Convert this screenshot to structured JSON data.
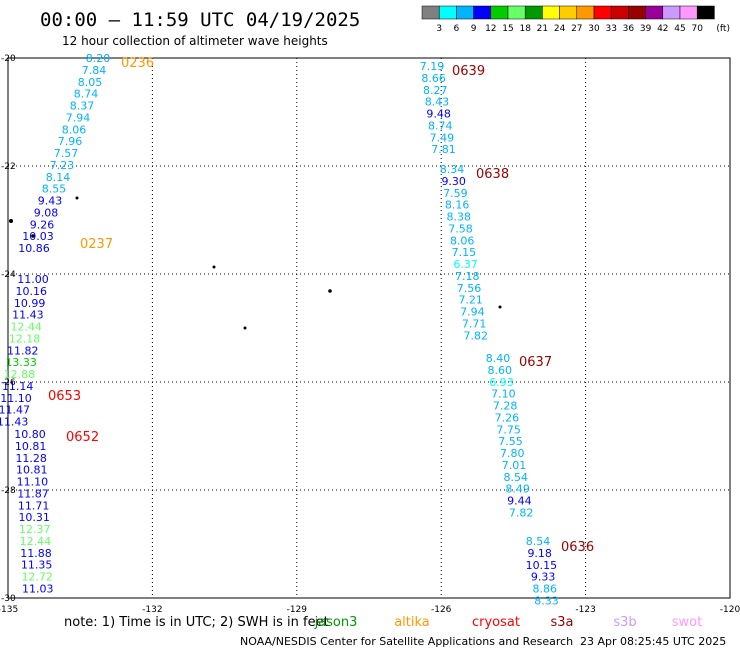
{
  "header": {
    "title": "00:00 – 11:59 UTC 04/19/2025",
    "subtitle": "12 hour collection of altimeter wave heights"
  },
  "legend": {
    "unit": "(ft)",
    "colors": [
      "#808080",
      "#00ffff",
      "#00b4ff",
      "#0000ff",
      "#00cc00",
      "#66ff66",
      "#009900",
      "#ffff00",
      "#ffcc00",
      "#ff9900",
      "#ff0000",
      "#cc0000",
      "#990000",
      "#990099",
      "#cc99ff",
      "#ff99ff",
      "#000000"
    ],
    "labels": [
      "3",
      "6",
      "9",
      "12",
      "15",
      "18",
      "21",
      "24",
      "27",
      "30",
      "33",
      "36",
      "39",
      "42",
      "45",
      "70"
    ]
  },
  "chart_data": {
    "type": "scatter",
    "xlim": [
      -135,
      -120
    ],
    "ylim": [
      -30,
      -20
    ],
    "x_ticks": [
      "-135",
      "-132",
      "-129",
      "-126",
      "-123",
      "-120"
    ],
    "y_ticks": [
      "-20",
      "-22",
      "-24",
      "-26",
      "-28",
      "-30"
    ],
    "grid": true,
    "tracks": [
      {
        "name": "0236",
        "label_color": "#ff9900",
        "points": [
          {
            "v": "8.20",
            "c": "#00b4ff"
          },
          {
            "v": "7.84",
            "c": "#00b4ff"
          },
          {
            "v": "8.05",
            "c": "#00b4ff"
          },
          {
            "v": "8.74",
            "c": "#00b4ff"
          },
          {
            "v": "8.37",
            "c": "#00b4ff"
          },
          {
            "v": "7.94",
            "c": "#00b4ff"
          },
          {
            "v": "8.06",
            "c": "#00b4ff"
          },
          {
            "v": "7.96",
            "c": "#00b4ff"
          },
          {
            "v": "7.57",
            "c": "#00b4ff"
          },
          {
            "v": "7.23",
            "c": "#00b4ff"
          },
          {
            "v": "8.14",
            "c": "#00b4ff"
          },
          {
            "v": "8.55",
            "c": "#00b4ff"
          },
          {
            "v": "9.43",
            "c": "#0000ff"
          },
          {
            "v": "9.08",
            "c": "#0000ff"
          },
          {
            "v": "9.26",
            "c": "#0000ff"
          },
          {
            "v": "10.03",
            "c": "#0000ff"
          },
          {
            "v": "10.86",
            "c": "#0000ff"
          }
        ]
      },
      {
        "name": "0237",
        "label_color": "#ff9900",
        "points": []
      },
      {
        "name": "0653",
        "label_color": "#ff0000",
        "points": [
          {
            "v": "11.00",
            "c": "#0000ff"
          },
          {
            "v": "10.16",
            "c": "#0000ff"
          },
          {
            "v": "10.99",
            "c": "#0000ff"
          },
          {
            "v": "11.43",
            "c": "#0000ff"
          },
          {
            "v": "12.44",
            "c": "#66ff66"
          },
          {
            "v": "12.18",
            "c": "#66ff66"
          },
          {
            "v": "11.82",
            "c": "#0000ff"
          },
          {
            "v": "13.33",
            "c": "#00cc00"
          },
          {
            "v": "12.88",
            "c": "#66ff66"
          },
          {
            "v": "11.14",
            "c": "#0000ff"
          },
          {
            "v": "11.10",
            "c": "#0000ff"
          },
          {
            "v": "11.47",
            "c": "#0000ff"
          },
          {
            "v": "11.43",
            "c": "#0000ff"
          }
        ]
      },
      {
        "name": "0652",
        "label_color": "#ff0000",
        "points": [
          {
            "v": "10.80",
            "c": "#0000ff"
          },
          {
            "v": "10.81",
            "c": "#0000ff"
          },
          {
            "v": "11.28",
            "c": "#0000ff"
          },
          {
            "v": "10.81",
            "c": "#0000ff"
          },
          {
            "v": "11.10",
            "c": "#0000ff"
          },
          {
            "v": "11.87",
            "c": "#0000ff"
          },
          {
            "v": "11.71",
            "c": "#0000ff"
          },
          {
            "v": "10.31",
            "c": "#0000ff"
          },
          {
            "v": "12.37",
            "c": "#66ff66"
          },
          {
            "v": "12.44",
            "c": "#66ff66"
          },
          {
            "v": "11.88",
            "c": "#0000ff"
          },
          {
            "v": "11.35",
            "c": "#0000ff"
          },
          {
            "v": "12.72",
            "c": "#66ff66"
          },
          {
            "v": "11.03",
            "c": "#0000ff"
          }
        ]
      },
      {
        "name": "0639",
        "label_color": "#990000",
        "points": [
          {
            "v": "7.19",
            "c": "#00b4ff"
          },
          {
            "v": "8.66",
            "c": "#00b4ff"
          },
          {
            "v": "8.27",
            "c": "#00b4ff"
          },
          {
            "v": "8.43",
            "c": "#00b4ff"
          },
          {
            "v": "9.48",
            "c": "#0000ff"
          },
          {
            "v": "8.74",
            "c": "#00b4ff"
          },
          {
            "v": "7.49",
            "c": "#00b4ff"
          },
          {
            "v": "7.81",
            "c": "#00b4ff"
          }
        ]
      },
      {
        "name": "0638",
        "label_color": "#990000",
        "points": [
          {
            "v": "8.34",
            "c": "#00b4ff"
          },
          {
            "v": "9.30",
            "c": "#0000ff"
          },
          {
            "v": "7.59",
            "c": "#00b4ff"
          },
          {
            "v": "8.16",
            "c": "#00b4ff"
          },
          {
            "v": "8.38",
            "c": "#00b4ff"
          },
          {
            "v": "7.58",
            "c": "#00b4ff"
          },
          {
            "v": "8.06",
            "c": "#00b4ff"
          },
          {
            "v": "7.15",
            "c": "#00b4ff"
          },
          {
            "v": "6.37",
            "c": "#00ffff"
          },
          {
            "v": "7.18",
            "c": "#00b4ff"
          },
          {
            "v": "7.56",
            "c": "#00b4ff"
          },
          {
            "v": "7.21",
            "c": "#00b4ff"
          },
          {
            "v": "7.94",
            "c": "#00b4ff"
          },
          {
            "v": "7.71",
            "c": "#00b4ff"
          },
          {
            "v": "7.82",
            "c": "#00b4ff"
          }
        ]
      },
      {
        "name": "0637",
        "label_color": "#990000",
        "points": [
          {
            "v": "8.40",
            "c": "#00b4ff"
          },
          {
            "v": "8.60",
            "c": "#00b4ff"
          },
          {
            "v": "6.93",
            "c": "#00ffff"
          },
          {
            "v": "7.10",
            "c": "#00b4ff"
          },
          {
            "v": "7.28",
            "c": "#00b4ff"
          },
          {
            "v": "7.26",
            "c": "#00b4ff"
          },
          {
            "v": "7.75",
            "c": "#00b4ff"
          },
          {
            "v": "7.55",
            "c": "#00b4ff"
          },
          {
            "v": "7.80",
            "c": "#00b4ff"
          },
          {
            "v": "7.01",
            "c": "#00b4ff"
          },
          {
            "v": "8.54",
            "c": "#00b4ff"
          },
          {
            "v": "8.49",
            "c": "#00b4ff"
          },
          {
            "v": "9.44",
            "c": "#0000ff"
          },
          {
            "v": "7.82",
            "c": "#00b4ff"
          }
        ]
      },
      {
        "name": "0636",
        "label_color": "#990000",
        "points": [
          {
            "v": "8.54",
            "c": "#00b4ff"
          },
          {
            "v": "9.18",
            "c": "#0000ff"
          },
          {
            "v": "10.15",
            "c": "#0000ff"
          },
          {
            "v": "9.33",
            "c": "#0000ff"
          },
          {
            "v": "8.86",
            "c": "#00b4ff"
          },
          {
            "v": "8.33",
            "c": "#00b4ff"
          }
        ]
      }
    ]
  },
  "footer": {
    "note": "note: 1) Time is in UTC; 2) SWH is in feet",
    "satellites": [
      {
        "name": "jason3",
        "color": "#009900"
      },
      {
        "name": "altika",
        "color": "#ff9900"
      },
      {
        "name": "cryosat",
        "color": "#ff0000"
      },
      {
        "name": "s3a",
        "color": "#990000"
      },
      {
        "name": "s3b",
        "color": "#cc99ff"
      },
      {
        "name": "swot",
        "color": "#ff99ff"
      }
    ],
    "credit": "NOAA/NESDIS Center for Satellite Applications and Research",
    "timestamp": "23 Apr 08:25:45 UTC 2025"
  }
}
